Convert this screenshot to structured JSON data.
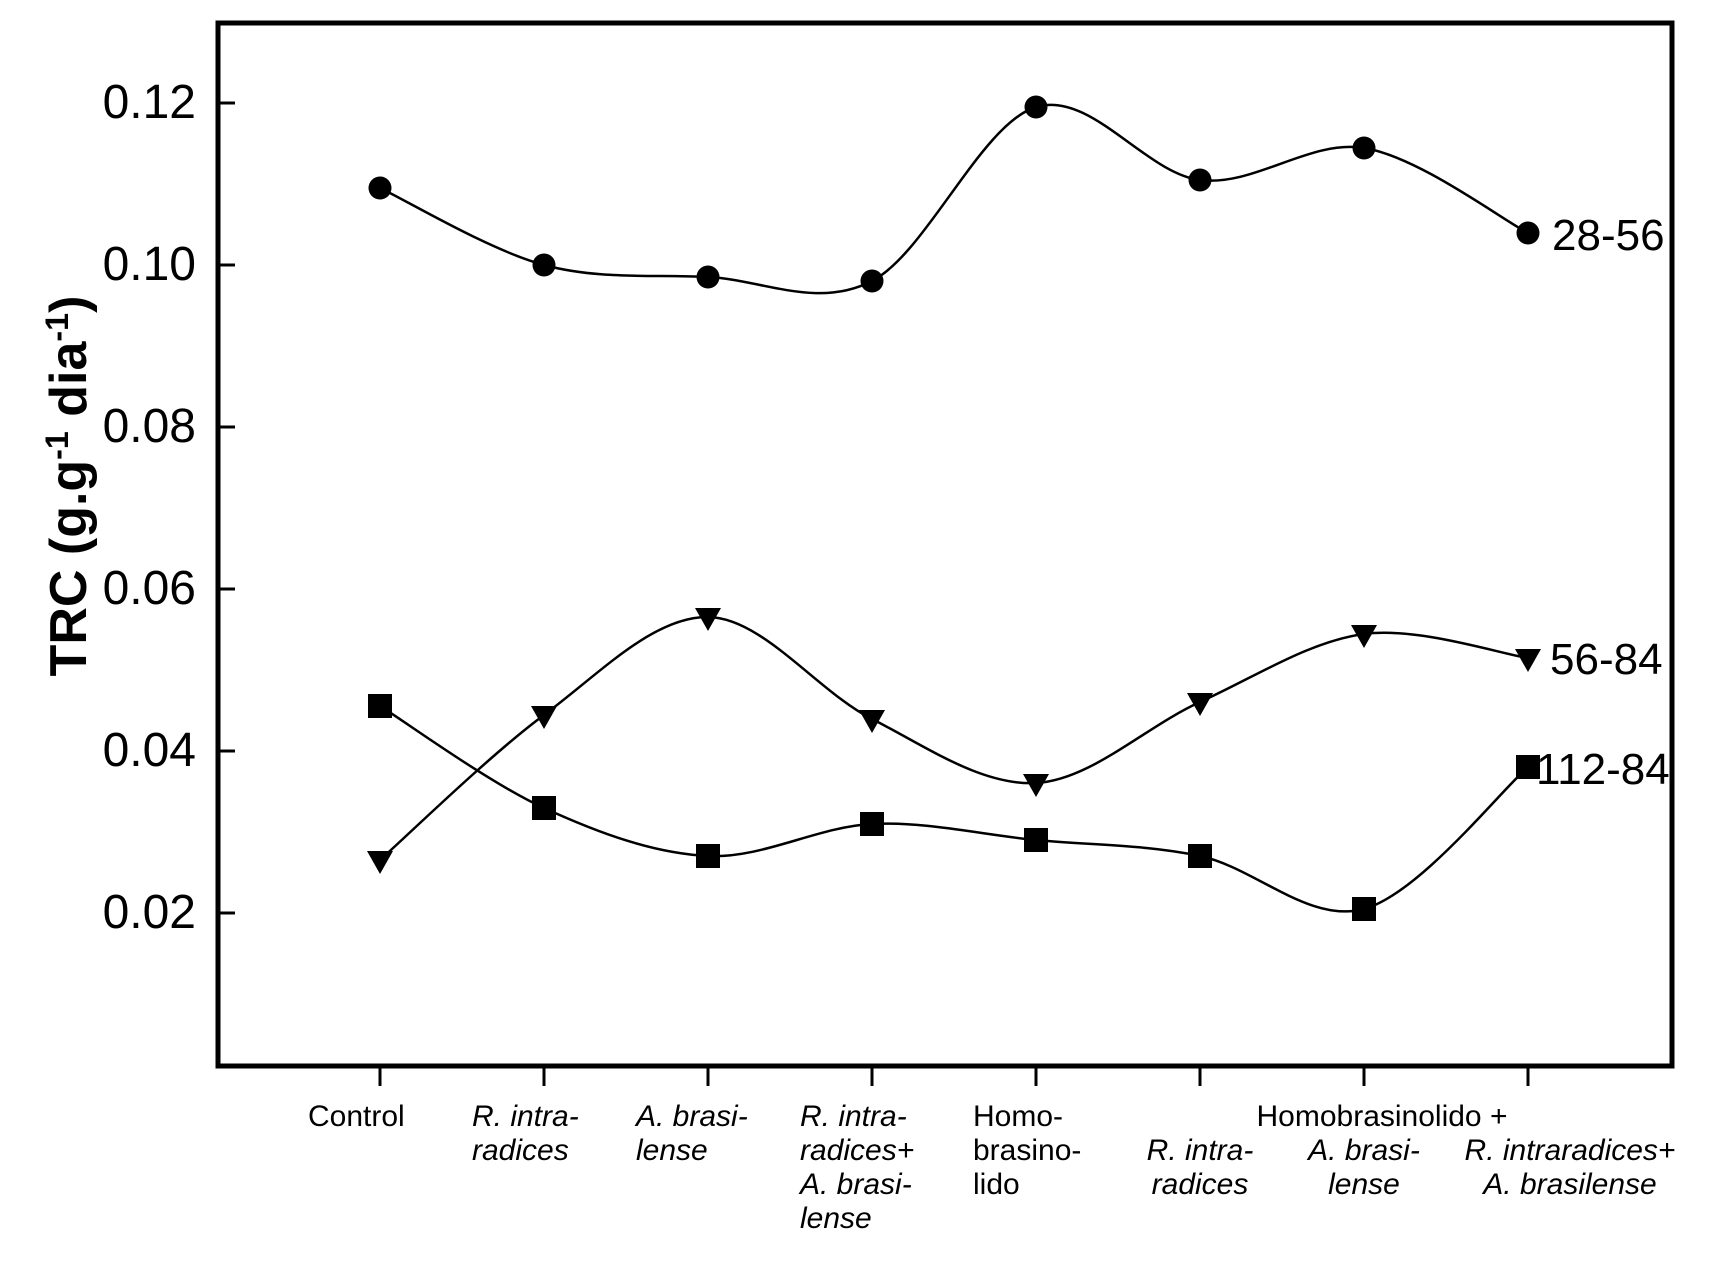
{
  "figure": {
    "background_color": "#ffffff",
    "foreground_color": "#000000",
    "ylabel_parts": {
      "prefix": "TRC (g.g",
      "sup1": "-1",
      "mid": " dia",
      "sup2": "-1",
      "suffix": ")"
    },
    "group_header": "Homobrasinolido +"
  },
  "chart_data": {
    "type": "line",
    "title": "",
    "xlabel": "",
    "ylabel": "TRC (g.g-1 dia-1)",
    "ylim": [
      0,
      0.13
    ],
    "grid": false,
    "legend_position": "right-end-labels",
    "yticks": [
      0.02,
      0.04,
      0.06,
      0.08,
      0.1,
      0.12
    ],
    "ytick_labels": [
      "0.02",
      "0.04",
      "0.06",
      "0.08",
      "0.10",
      "0.12"
    ],
    "categories": [
      {
        "lines": [
          "Control"
        ],
        "italic": false
      },
      {
        "lines": [
          "R. intra-",
          "radices"
        ],
        "italic": true
      },
      {
        "lines": [
          "A. brasi-",
          "lense"
        ],
        "italic": true
      },
      {
        "lines": [
          "R. intra-",
          "radices+",
          "A. brasi-",
          "lense"
        ],
        "italic": true
      },
      {
        "lines": [
          "Homo-",
          "brasino-",
          "lido"
        ],
        "italic": false
      },
      {
        "lines": [
          "R. intra-",
          "radices"
        ],
        "italic": true
      },
      {
        "lines": [
          "A. brasi-",
          "lense"
        ],
        "italic": true
      },
      {
        "lines": [
          "R. intraradices+",
          "A. brasilense"
        ],
        "italic": true
      }
    ],
    "x_group_header": {
      "label": "Homobrasinolido +",
      "spans_categories": [
        5,
        6,
        7
      ]
    },
    "series": [
      {
        "name": "28-56",
        "marker": "circle",
        "values": [
          0.1095,
          0.1,
          0.0985,
          0.098,
          0.1195,
          0.1105,
          0.1145,
          0.104
        ]
      },
      {
        "name": "56-84",
        "marker": "triangle-down",
        "values": [
          0.0265,
          0.0445,
          0.0565,
          0.044,
          0.036,
          0.046,
          0.0545,
          0.0515
        ]
      },
      {
        "name": "112-84",
        "marker": "square",
        "values": [
          0.0455,
          0.033,
          0.027,
          0.031,
          0.029,
          0.027,
          0.0205,
          0.038
        ]
      }
    ]
  }
}
